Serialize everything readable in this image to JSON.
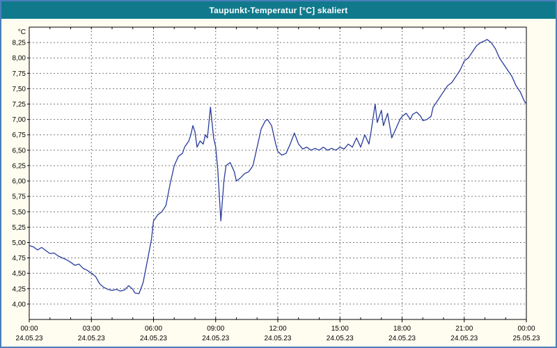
{
  "window": {
    "border_color": "#4a7ebc",
    "background": "#fffdf0"
  },
  "title_bar": {
    "background": "#107a8c",
    "text_color": "#ffffff"
  },
  "chart_data": {
    "type": "line",
    "title": "Taupunkt-Temperatur [°C] skaliert",
    "ylabel": "°C",
    "xlabel": "",
    "ylim": [
      3.75,
      8.5
    ],
    "xlim": [
      0,
      24
    ],
    "grid": true,
    "legend": "none",
    "line_color": "#283b9b",
    "grid_color": "#777777",
    "plot_background": "#ffffff",
    "yticks": [
      {
        "v": 4.0,
        "label": "4,00"
      },
      {
        "v": 4.25,
        "label": "4,25"
      },
      {
        "v": 4.5,
        "label": "4,50"
      },
      {
        "v": 4.75,
        "label": "4,75"
      },
      {
        "v": 5.0,
        "label": "5,00"
      },
      {
        "v": 5.25,
        "label": "5,25"
      },
      {
        "v": 5.5,
        "label": "5,50"
      },
      {
        "v": 5.75,
        "label": "5,75"
      },
      {
        "v": 6.0,
        "label": "6,00"
      },
      {
        "v": 6.25,
        "label": "6,25"
      },
      {
        "v": 6.5,
        "label": "6,50"
      },
      {
        "v": 6.75,
        "label": "6,75"
      },
      {
        "v": 7.0,
        "label": "7,00"
      },
      {
        "v": 7.25,
        "label": "7,25"
      },
      {
        "v": 7.5,
        "label": "7,50"
      },
      {
        "v": 7.75,
        "label": "7,75"
      },
      {
        "v": 8.0,
        "label": "8,00"
      },
      {
        "v": 8.25,
        "label": "8,25"
      }
    ],
    "xticks": [
      {
        "h": 0,
        "time": "00:00",
        "date": "24.05.23"
      },
      {
        "h": 3,
        "time": "03:00",
        "date": "24.05.23"
      },
      {
        "h": 6,
        "time": "06:00",
        "date": "24.05.23"
      },
      {
        "h": 9,
        "time": "09:00",
        "date": "24.05.23"
      },
      {
        "h": 12,
        "time": "12:00",
        "date": "24.05.23"
      },
      {
        "h": 15,
        "time": "15:00",
        "date": "24.05.23"
      },
      {
        "h": 18,
        "time": "18:00",
        "date": "24.05.23"
      },
      {
        "h": 21,
        "time": "21:00",
        "date": "24.05.23"
      },
      {
        "h": 24,
        "time": "00:00",
        "date": "25.05.23"
      }
    ],
    "points": [
      [
        0.0,
        4.95
      ],
      [
        0.2,
        4.93
      ],
      [
        0.4,
        4.88
      ],
      [
        0.6,
        4.92
      ],
      [
        0.8,
        4.87
      ],
      [
        1.0,
        4.82
      ],
      [
        1.2,
        4.83
      ],
      [
        1.4,
        4.78
      ],
      [
        1.6,
        4.75
      ],
      [
        1.8,
        4.72
      ],
      [
        2.0,
        4.68
      ],
      [
        2.2,
        4.63
      ],
      [
        2.4,
        4.65
      ],
      [
        2.6,
        4.58
      ],
      [
        2.8,
        4.55
      ],
      [
        3.0,
        4.5
      ],
      [
        3.2,
        4.45
      ],
      [
        3.4,
        4.33
      ],
      [
        3.6,
        4.27
      ],
      [
        3.8,
        4.24
      ],
      [
        4.0,
        4.22
      ],
      [
        4.2,
        4.24
      ],
      [
        4.4,
        4.21
      ],
      [
        4.6,
        4.23
      ],
      [
        4.8,
        4.3
      ],
      [
        5.0,
        4.24
      ],
      [
        5.1,
        4.18
      ],
      [
        5.3,
        4.17
      ],
      [
        5.5,
        4.35
      ],
      [
        5.7,
        4.7
      ],
      [
        5.9,
        5.05
      ],
      [
        6.0,
        5.35
      ],
      [
        6.2,
        5.45
      ],
      [
        6.4,
        5.5
      ],
      [
        6.6,
        5.6
      ],
      [
        6.8,
        5.95
      ],
      [
        7.0,
        6.25
      ],
      [
        7.2,
        6.4
      ],
      [
        7.4,
        6.45
      ],
      [
        7.5,
        6.55
      ],
      [
        7.7,
        6.65
      ],
      [
        7.8,
        6.75
      ],
      [
        7.9,
        6.9
      ],
      [
        8.0,
        6.8
      ],
      [
        8.1,
        6.55
      ],
      [
        8.25,
        6.65
      ],
      [
        8.4,
        6.6
      ],
      [
        8.5,
        6.75
      ],
      [
        8.6,
        6.7
      ],
      [
        8.75,
        7.2
      ],
      [
        8.9,
        6.7
      ],
      [
        9.0,
        6.55
      ],
      [
        9.1,
        6.2
      ],
      [
        9.25,
        5.35
      ],
      [
        9.4,
        6.0
      ],
      [
        9.5,
        6.25
      ],
      [
        9.7,
        6.3
      ],
      [
        9.9,
        6.15
      ],
      [
        10.0,
        6.0
      ],
      [
        10.2,
        6.05
      ],
      [
        10.4,
        6.12
      ],
      [
        10.6,
        6.15
      ],
      [
        10.8,
        6.25
      ],
      [
        11.0,
        6.55
      ],
      [
        11.2,
        6.85
      ],
      [
        11.4,
        6.98
      ],
      [
        11.5,
        7.0
      ],
      [
        11.7,
        6.9
      ],
      [
        11.9,
        6.6
      ],
      [
        12.0,
        6.48
      ],
      [
        12.2,
        6.42
      ],
      [
        12.4,
        6.45
      ],
      [
        12.6,
        6.6
      ],
      [
        12.8,
        6.78
      ],
      [
        13.0,
        6.6
      ],
      [
        13.2,
        6.52
      ],
      [
        13.4,
        6.55
      ],
      [
        13.6,
        6.5
      ],
      [
        13.8,
        6.53
      ],
      [
        14.0,
        6.5
      ],
      [
        14.2,
        6.55
      ],
      [
        14.4,
        6.5
      ],
      [
        14.6,
        6.53
      ],
      [
        14.8,
        6.5
      ],
      [
        15.0,
        6.55
      ],
      [
        15.2,
        6.52
      ],
      [
        15.4,
        6.6
      ],
      [
        15.6,
        6.55
      ],
      [
        15.8,
        6.7
      ],
      [
        16.0,
        6.55
      ],
      [
        16.2,
        6.75
      ],
      [
        16.4,
        6.6
      ],
      [
        16.5,
        6.8
      ],
      [
        16.7,
        7.25
      ],
      [
        16.8,
        6.95
      ],
      [
        17.0,
        7.15
      ],
      [
        17.1,
        6.9
      ],
      [
        17.3,
        7.1
      ],
      [
        17.5,
        6.7
      ],
      [
        17.7,
        6.85
      ],
      [
        17.9,
        7.0
      ],
      [
        18.0,
        7.05
      ],
      [
        18.2,
        7.1
      ],
      [
        18.4,
        7.0
      ],
      [
        18.5,
        7.08
      ],
      [
        18.7,
        7.12
      ],
      [
        18.9,
        7.05
      ],
      [
        19.0,
        6.98
      ],
      [
        19.2,
        7.0
      ],
      [
        19.4,
        7.05
      ],
      [
        19.5,
        7.2
      ],
      [
        19.7,
        7.3
      ],
      [
        19.9,
        7.4
      ],
      [
        20.0,
        7.45
      ],
      [
        20.2,
        7.55
      ],
      [
        20.4,
        7.6
      ],
      [
        20.6,
        7.7
      ],
      [
        20.8,
        7.8
      ],
      [
        21.0,
        7.95
      ],
      [
        21.2,
        8.0
      ],
      [
        21.4,
        8.1
      ],
      [
        21.6,
        8.2
      ],
      [
        21.8,
        8.25
      ],
      [
        22.0,
        8.28
      ],
      [
        22.1,
        8.3
      ],
      [
        22.3,
        8.25
      ],
      [
        22.5,
        8.15
      ],
      [
        22.7,
        8.0
      ],
      [
        22.9,
        7.9
      ],
      [
        23.1,
        7.8
      ],
      [
        23.3,
        7.7
      ],
      [
        23.5,
        7.55
      ],
      [
        23.7,
        7.45
      ],
      [
        23.9,
        7.3
      ],
      [
        24.0,
        7.25
      ]
    ]
  }
}
